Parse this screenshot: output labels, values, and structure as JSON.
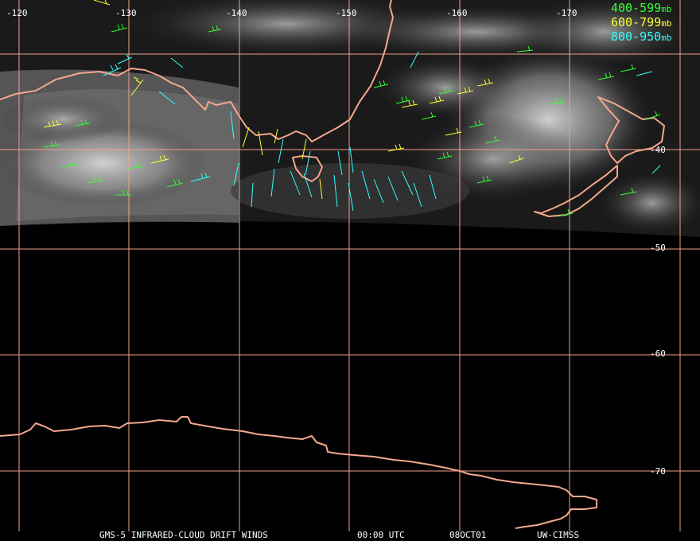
{
  "colors": {
    "grid": "#f0a08a",
    "coast": "#f4a78e",
    "layer_400_599": "#33ff33",
    "layer_600_799": "#ffff33",
    "layer_800_950": "#33ffff",
    "label": "#ffffff",
    "background": "#000000"
  },
  "longitude_labels": [
    "-120",
    "-130",
    "-140",
    "-150",
    "-160",
    "-170"
  ],
  "latitude_labels": [
    "-40",
    "-50",
    "-60",
    "-70"
  ],
  "legend": [
    {
      "range": "400-599",
      "unit": "mb",
      "color": "#33ff33"
    },
    {
      "range": "600-799",
      "unit": "mb",
      "color": "#ffff33"
    },
    {
      "range": "800-950",
      "unit": "mb",
      "color": "#33ffff"
    }
  ],
  "footer": {
    "product": "GMS-5 INFRARED-CLOUD DRIFT WINDS",
    "time": "00:00 UTC",
    "date": "08OCT01",
    "source": "UW-CIMSS"
  },
  "icons": [
    "wind-barb-icon"
  ]
}
